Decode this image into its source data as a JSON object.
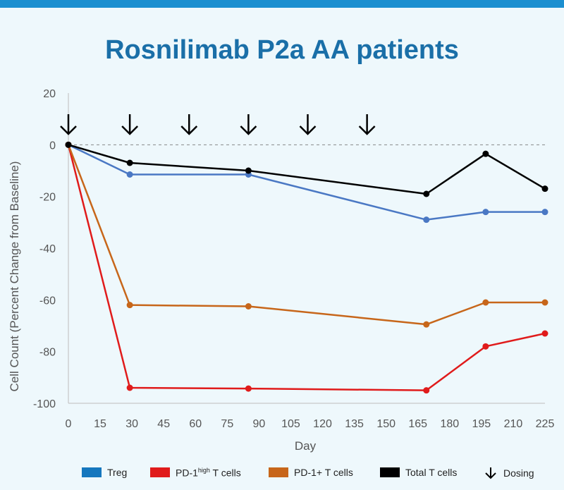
{
  "title": "Rosnilimab P2a AA patients",
  "chart_data": {
    "type": "line",
    "title": "Rosnilimab P2a AA patients",
    "xlabel": "Day",
    "ylabel": "Cell Count (Percent Change from Baseline)",
    "xlim": [
      0,
      225
    ],
    "ylim": [
      -100,
      20
    ],
    "xticks": [
      0,
      15,
      30,
      45,
      60,
      75,
      90,
      105,
      120,
      135,
      150,
      165,
      180,
      195,
      210,
      225
    ],
    "yticks": [
      20,
      0,
      -20,
      -40,
      -60,
      -80,
      -100
    ],
    "grid": false,
    "reference_line": 0,
    "legend_position": "bottom",
    "x": [
      0,
      29,
      85,
      169,
      197,
      225
    ],
    "series": [
      {
        "name": "Treg",
        "color": "#4a78c4",
        "values": [
          0,
          -11.5,
          -11.5,
          -29,
          -26,
          -26
        ]
      },
      {
        "name": "PD-1high T cells",
        "color": "#e01b1b",
        "values": [
          0,
          -94,
          -94.3,
          -95,
          -78,
          -73
        ]
      },
      {
        "name": "PD-1+ T cells",
        "color": "#c7661a",
        "values": [
          0,
          -62,
          -62.5,
          -69.5,
          -61,
          -61
        ]
      },
      {
        "name": "Total T cells",
        "color": "#000000",
        "values": [
          0,
          -7,
          -10,
          -19,
          -3.5,
          -17
        ]
      }
    ],
    "dosing_days": [
      0,
      29,
      57,
      85,
      113,
      141
    ]
  },
  "legend": {
    "treg": {
      "label": "Treg",
      "color": "#1577be"
    },
    "pd1high": {
      "label_prefix": "PD-1",
      "label_sup": "high",
      "label_suffix": " T cells",
      "color": "#e01b1b"
    },
    "pd1plus": {
      "label": "PD-1+ T cells",
      "color": "#c7661a"
    },
    "total": {
      "label": "Total T cells",
      "color": "#000000"
    },
    "dosing": {
      "label": "Dosing"
    }
  }
}
